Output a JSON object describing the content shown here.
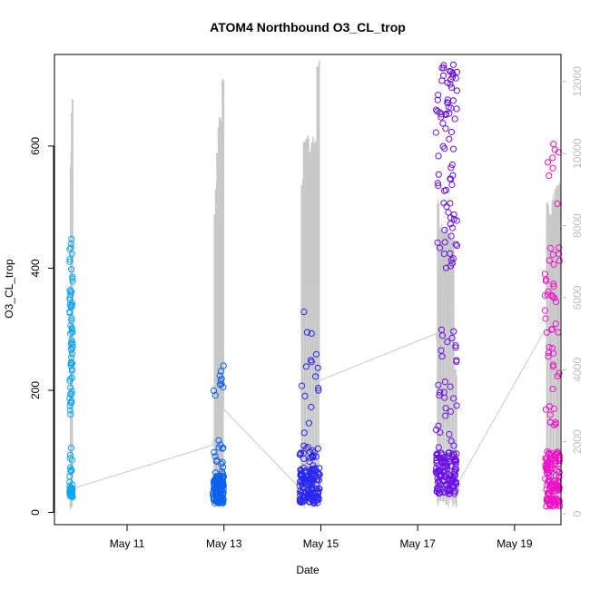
{
  "chart_data": {
    "type": "scatter",
    "title": "ATOM4 Northbound O3_CL_trop",
    "xlabel": "Date",
    "ylabel": "O3_CL_trop",
    "x_is_date": true,
    "x_date_range": [
      "2018-05-09T12:00",
      "2018-05-19T23:00"
    ],
    "x_ticks": [
      {
        "date": "2018-05-11T00:00",
        "label": "May 11"
      },
      {
        "date": "2018-05-13T00:00",
        "label": "May 13"
      },
      {
        "date": "2018-05-15T00:00",
        "label": "May 15"
      },
      {
        "date": "2018-05-17T00:00",
        "label": "May 17"
      },
      {
        "date": "2018-05-19T00:00",
        "label": "May 19"
      }
    ],
    "ylim": [
      -20,
      750
    ],
    "y_ticks": [
      0,
      200,
      400,
      600
    ],
    "y2lim": [
      -300,
      12750
    ],
    "y2_ticks": [
      0,
      2000,
      4000,
      6000,
      8000,
      10000,
      12000
    ],
    "y2_label": "",
    "grid": false,
    "legend": "none",
    "series": [
      {
        "flight": 1,
        "color": "#0aa6f5",
        "x_start": "2018-05-09T19:30",
        "x_end": "2018-05-09T21:00",
        "clusters": [
          {
            "n": 30,
            "min": 25,
            "max": 40
          },
          {
            "n": 40,
            "min": 160,
            "max": 330
          },
          {
            "n": 22,
            "min": 330,
            "max": 450
          },
          {
            "n": 12,
            "min": 40,
            "max": 110
          }
        ],
        "altitude_track": [
          {
            "x": "2018-05-09T19:40",
            "alt": 200
          },
          {
            "x": "2018-05-09T19:50",
            "alt": 9600
          },
          {
            "x": "2018-05-09T20:00",
            "alt": 300
          },
          {
            "x": "2018-05-09T20:10",
            "alt": 10000
          },
          {
            "x": "2018-05-09T20:20",
            "alt": 11100
          },
          {
            "x": "2018-05-09T20:40",
            "alt": 11500
          },
          {
            "x": "2018-05-09T20:55",
            "alt": 200
          }
        ]
      },
      {
        "flight": 2,
        "color": "#0c62f0",
        "x_start": "2018-05-12T18:30",
        "x_end": "2018-05-12T23:55",
        "clusters": [
          {
            "n": 120,
            "min": 15,
            "max": 60
          },
          {
            "n": 15,
            "min": 60,
            "max": 120
          },
          {
            "n": 10,
            "min": 190,
            "max": 260
          }
        ],
        "altitude_track": [
          {
            "x": "2018-05-12T19:00",
            "alt": 8300
          },
          {
            "x": "2018-05-12T19:40",
            "alt": 9000
          },
          {
            "x": "2018-05-12T20:20",
            "alt": 10000
          },
          {
            "x": "2018-05-12T21:00",
            "alt": 10700
          },
          {
            "x": "2018-05-12T21:40",
            "alt": 11000
          },
          {
            "x": "2018-05-12T22:20",
            "alt": 10900
          },
          {
            "x": "2018-05-12T23:00",
            "alt": 12000
          },
          {
            "x": "2018-05-12T23:50",
            "alt": 2900
          }
        ]
      },
      {
        "flight": 3,
        "color": "#2a26f0",
        "x_start": "2018-05-14T13:30",
        "x_end": "2018-05-14T23:30",
        "clusters": [
          {
            "n": 130,
            "min": 15,
            "max": 75
          },
          {
            "n": 20,
            "min": 75,
            "max": 110
          },
          {
            "n": 16,
            "min": 130,
            "max": 340
          }
        ],
        "altitude_track": [
          {
            "x": "2018-05-14T14:00",
            "alt": 9100
          },
          {
            "x": "2018-05-14T15:20",
            "alt": 10300
          },
          {
            "x": "2018-05-14T16:40",
            "alt": 10400
          },
          {
            "x": "2018-05-14T18:00",
            "alt": 10000
          },
          {
            "x": "2018-05-14T19:20",
            "alt": 10300
          },
          {
            "x": "2018-05-14T20:40",
            "alt": 10200
          },
          {
            "x": "2018-05-14T22:00",
            "alt": 12400
          },
          {
            "x": "2018-05-14T23:20",
            "alt": 3700
          }
        ]
      },
      {
        "flight": 4,
        "color": "#6a10e8",
        "x_start": "2018-05-17T09:00",
        "x_end": "2018-05-17T19:30",
        "clusters": [
          {
            "n": 120,
            "min": 30,
            "max": 100
          },
          {
            "n": 30,
            "min": 100,
            "max": 300
          },
          {
            "n": 40,
            "min": 400,
            "max": 620
          },
          {
            "n": 40,
            "min": 620,
            "max": 745
          }
        ],
        "altitude_track": [
          {
            "x": "2018-05-17T09:30",
            "alt": 8600
          },
          {
            "x": "2018-05-17T10:30",
            "alt": 7900
          },
          {
            "x": "2018-05-17T12:00",
            "alt": 7800
          },
          {
            "x": "2018-05-17T13:30",
            "alt": 7900
          },
          {
            "x": "2018-05-17T15:00",
            "alt": 7700
          },
          {
            "x": "2018-05-17T16:30",
            "alt": 7600
          },
          {
            "x": "2018-05-17T18:00",
            "alt": 4000
          },
          {
            "x": "2018-05-17T19:20",
            "alt": 200
          }
        ]
      },
      {
        "flight": 5,
        "color": "#f010c8",
        "x_start": "2018-05-19T15:00",
        "x_end": "2018-05-19T22:30",
        "clusters": [
          {
            "n": 120,
            "min": 10,
            "max": 100
          },
          {
            "n": 25,
            "min": 140,
            "max": 320
          },
          {
            "n": 20,
            "min": 320,
            "max": 440
          },
          {
            "n": 8,
            "min": 500,
            "max": 610
          }
        ],
        "altitude_track": [
          {
            "x": "2018-05-19T15:30",
            "alt": 8600
          },
          {
            "x": "2018-05-19T17:00",
            "alt": 8300
          },
          {
            "x": "2018-05-19T18:30",
            "alt": 8700
          },
          {
            "x": "2018-05-19T20:00",
            "alt": 9000
          },
          {
            "x": "2018-05-19T21:30",
            "alt": 9100
          },
          {
            "x": "2018-05-19T22:20",
            "alt": 9200
          }
        ]
      }
    ],
    "connecting_track": [
      {
        "x": "2018-05-09T21:00",
        "alt": 700
      },
      {
        "x": "2018-05-12T18:00",
        "alt": 1900
      },
      {
        "x": "2018-05-12T23:55",
        "alt": 2900
      },
      {
        "x": "2018-05-14T12:00",
        "alt": 800
      },
      {
        "x": "2018-05-14T23:30",
        "alt": 3700
      },
      {
        "x": "2018-05-17T09:00",
        "alt": 5000
      },
      {
        "x": "2018-05-17T19:30",
        "alt": 800
      },
      {
        "x": "2018-05-19T14:00",
        "alt": 5000
      }
    ]
  }
}
